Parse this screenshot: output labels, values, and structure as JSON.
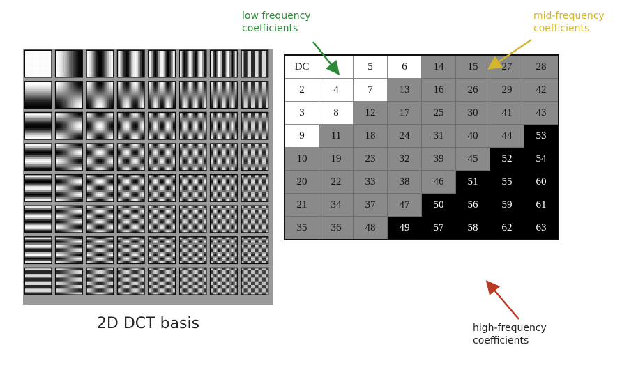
{
  "basis_caption": "2D DCT basis",
  "annotations": {
    "low": {
      "line1": "low frequency",
      "line2": "coefficients",
      "color": "#2e8b3a"
    },
    "mid": {
      "line1": "mid-frequency",
      "line2": "coefficients",
      "color": "#d4b62e"
    },
    "high": {
      "line1": "high-frequency",
      "line2": "coefficients",
      "color": "#b83a22"
    }
  },
  "basis_grid": {
    "rows": 8,
    "cols": 8
  },
  "zigzag_table": {
    "rows": [
      [
        "DC",
        "1",
        "5",
        "6",
        "14",
        "15",
        "27",
        "28"
      ],
      [
        "2",
        "4",
        "7",
        "13",
        "16",
        "26",
        "29",
        "42"
      ],
      [
        "3",
        "8",
        "12",
        "17",
        "25",
        "30",
        "41",
        "43"
      ],
      [
        "9",
        "11",
        "18",
        "24",
        "31",
        "40",
        "44",
        "53"
      ],
      [
        "10",
        "19",
        "23",
        "32",
        "39",
        "45",
        "52",
        "54"
      ],
      [
        "20",
        "22",
        "33",
        "38",
        "46",
        "51",
        "55",
        "60"
      ],
      [
        "21",
        "34",
        "37",
        "47",
        "50",
        "56",
        "59",
        "61"
      ],
      [
        "35",
        "36",
        "48",
        "49",
        "57",
        "58",
        "62",
        "63"
      ]
    ],
    "bands": [
      [
        "low",
        "low",
        "low",
        "low",
        "mid",
        "mid",
        "mid",
        "mid"
      ],
      [
        "low",
        "low",
        "low",
        "mid",
        "mid",
        "mid",
        "mid",
        "mid"
      ],
      [
        "low",
        "low",
        "mid",
        "mid",
        "mid",
        "mid",
        "mid",
        "mid"
      ],
      [
        "low",
        "mid",
        "mid",
        "mid",
        "mid",
        "mid",
        "mid",
        "high"
      ],
      [
        "mid",
        "mid",
        "mid",
        "mid",
        "mid",
        "mid",
        "high",
        "high"
      ],
      [
        "mid",
        "mid",
        "mid",
        "mid",
        "mid",
        "high",
        "high",
        "high"
      ],
      [
        "mid",
        "mid",
        "mid",
        "mid",
        "high",
        "high",
        "high",
        "high"
      ],
      [
        "mid",
        "mid",
        "mid",
        "high",
        "high",
        "high",
        "high",
        "high"
      ]
    ]
  }
}
